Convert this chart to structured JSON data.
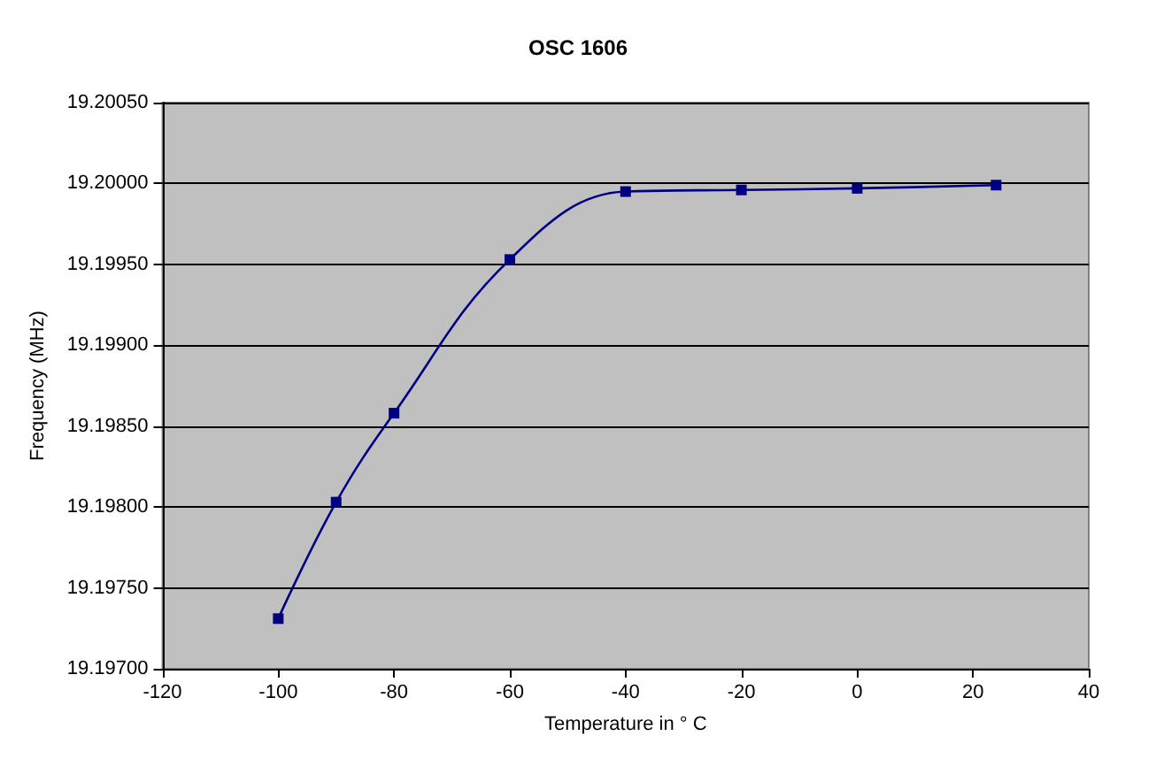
{
  "chart_data": {
    "type": "line",
    "title": "OSC 1606",
    "xlabel": "Temperature in ° C",
    "ylabel": "Frequency (MHz)",
    "x": [
      -100,
      -90,
      -80,
      -60,
      -40,
      -20,
      0,
      24
    ],
    "series": [
      {
        "color": "#000080",
        "values": [
          19.19731,
          19.19803,
          19.19858,
          19.19953,
          19.19995,
          19.19996,
          19.19997,
          19.19999
        ]
      }
    ],
    "xlim": [
      -120,
      40
    ],
    "xticks": [
      -120,
      -100,
      -80,
      -60,
      -40,
      -20,
      0,
      20,
      40
    ],
    "ylim": [
      19.197,
      19.2005
    ],
    "yticks": [
      {
        "value": 19.197,
        "label": "19.19700"
      },
      {
        "value": 19.1975,
        "label": "19.19750"
      },
      {
        "value": 19.198,
        "label": "19.19800"
      },
      {
        "value": 19.1985,
        "label": "19.19850"
      },
      {
        "value": 19.199,
        "label": "19.19900"
      },
      {
        "value": 19.1995,
        "label": "19.19950"
      },
      {
        "value": 19.2,
        "label": "19.20000"
      },
      {
        "value": 19.2005,
        "label": "19.20050"
      }
    ],
    "grid": "y",
    "marker": "square",
    "line_style": "solid"
  }
}
